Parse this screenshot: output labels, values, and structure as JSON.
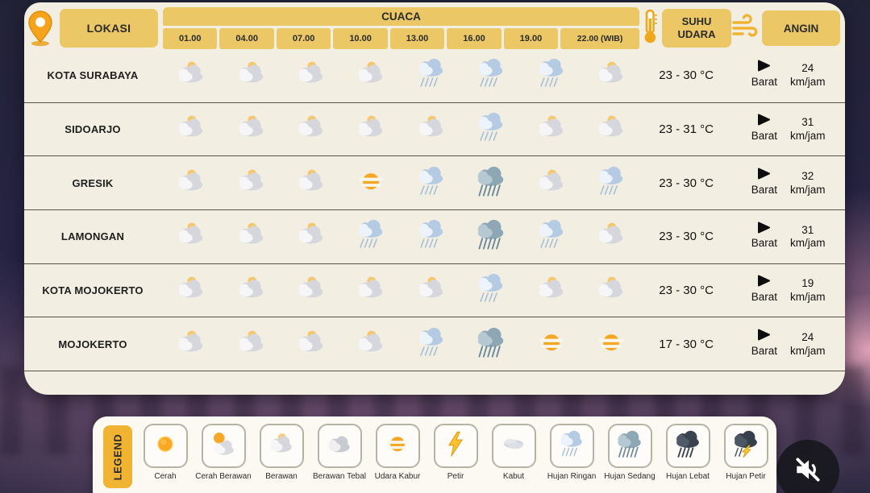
{
  "header": {
    "location_col": "LOKASI",
    "weather_col": "CUACA",
    "temp_col": "SUHU UDARA",
    "wind_col": "ANGIN",
    "times": [
      "01.00",
      "04.00",
      "07.00",
      "10.00",
      "13.00",
      "16.00",
      "19.00",
      "22.00 (WIB)"
    ]
  },
  "colors": {
    "header_yellow": "#ebc766",
    "card_cream": "#f2efe2",
    "legend_tab_yellow": "#f0b332",
    "accent_orange": "#f5a623",
    "rain_blue": "#b5cbe4",
    "background_navy": "#262343"
  },
  "icons": {
    "location_pin": "location-pin-icon",
    "thermometer": "thermometer-icon",
    "wind": "wind-gust-icon",
    "mute": "muted-speaker-icon",
    "wind_arrow": "right-arrow-icon"
  },
  "rows": [
    {
      "location": "KOTA SURABAYA",
      "icons": [
        "berawan",
        "berawan",
        "berawan",
        "berawan",
        "hujan-ringan",
        "hujan-ringan",
        "hujan-ringan",
        "berawan"
      ],
      "temp": "23 - 30 °C",
      "wind_dir": "Barat",
      "wind_speed": "24",
      "wind_unit": "km/jam"
    },
    {
      "location": "SIDOARJO",
      "icons": [
        "berawan",
        "berawan",
        "berawan",
        "berawan",
        "berawan",
        "hujan-ringan",
        "berawan",
        "berawan"
      ],
      "temp": "23 - 31 °C",
      "wind_dir": "Barat",
      "wind_speed": "31",
      "wind_unit": "km/jam"
    },
    {
      "location": "GRESIK",
      "icons": [
        "berawan",
        "berawan",
        "berawan",
        "udara-kabur",
        "hujan-ringan",
        "hujan-sedang",
        "berawan",
        "hujan-ringan"
      ],
      "temp": "23 - 30 °C",
      "wind_dir": "Barat",
      "wind_speed": "32",
      "wind_unit": "km/jam"
    },
    {
      "location": "LAMONGAN",
      "icons": [
        "berawan",
        "berawan",
        "berawan",
        "hujan-ringan",
        "hujan-ringan",
        "hujan-sedang",
        "hujan-ringan",
        "berawan"
      ],
      "temp": "23 - 30 °C",
      "wind_dir": "Barat",
      "wind_speed": "31",
      "wind_unit": "km/jam"
    },
    {
      "location": "KOTA MOJOKERTO",
      "icons": [
        "berawan",
        "berawan",
        "berawan",
        "berawan",
        "berawan",
        "hujan-ringan",
        "berawan",
        "berawan"
      ],
      "temp": "23 - 30 °C",
      "wind_dir": "Barat",
      "wind_speed": "19",
      "wind_unit": "km/jam"
    },
    {
      "location": "MOJOKERTO",
      "icons": [
        "berawan",
        "berawan",
        "berawan",
        "berawan",
        "hujan-ringan",
        "hujan-sedang",
        "udara-kabur",
        "udara-kabur"
      ],
      "temp": "17 - 30 °C",
      "wind_dir": "Barat",
      "wind_speed": "24",
      "wind_unit": "km/jam"
    }
  ],
  "legend": {
    "title": "LEGEND",
    "items": [
      {
        "label": "Cerah",
        "icon": "cerah"
      },
      {
        "label": "Cerah Berawan",
        "icon": "cerah-berawan"
      },
      {
        "label": "Berawan",
        "icon": "berawan"
      },
      {
        "label": "Berawan Tebal",
        "icon": "berawan-tebal"
      },
      {
        "label": "Udara Kabur",
        "icon": "udara-kabur"
      },
      {
        "label": "Petir",
        "icon": "petir"
      },
      {
        "label": "Kabut",
        "icon": "kabut"
      },
      {
        "label": "Hujan Ringan",
        "icon": "hujan-ringan"
      },
      {
        "label": "Hujan Sedang",
        "icon": "hujan-sedang"
      },
      {
        "label": "Hujan Lebat",
        "icon": "hujan-lebat"
      },
      {
        "label": "Hujan Petir",
        "icon": "hujan-petir"
      }
    ]
  }
}
